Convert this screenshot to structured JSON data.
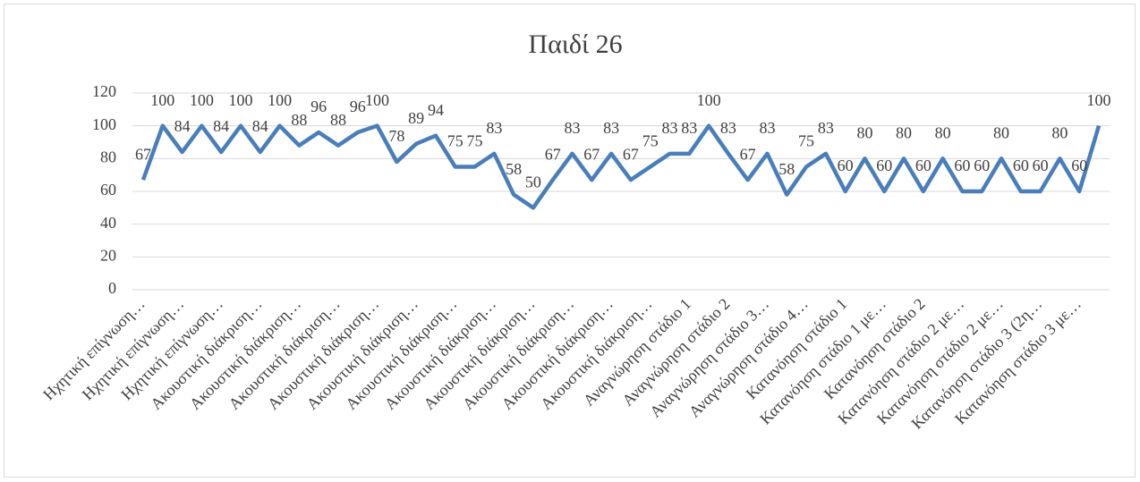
{
  "chart_data": {
    "type": "line",
    "title": "Παιδί 26",
    "categories": [
      "Ηχητική επίγνωση…",
      null,
      "Ηχητική επίγνωση…",
      null,
      "Ηχητική επίγνωση…",
      null,
      "Ακουστική διάκριση…",
      null,
      "Ακουστική διάκριση…",
      null,
      "Ακουστική διάκριση…",
      null,
      "Ακουστική διάκριση…",
      null,
      "Ακουστική διάκριση…",
      null,
      "Ακουστική διάκριση…",
      null,
      "Ακουστική διάκριση…",
      null,
      "Ακουστική διάκριση…",
      null,
      "Ακουστική διάκριση…",
      null,
      "Ακουστική διάκριση…",
      null,
      "Ακουστική διάκριση…",
      null,
      "Αναγνώρηση στάδιο 1",
      null,
      "Αναγνώρηση στάδιο 2",
      null,
      "Αναγνώρηση στάδιο 3…",
      null,
      "Αναγνώρηση στάδιο 4…",
      null,
      "Κατανόηση στάδιο 1",
      null,
      "Κατανόηση στάδιο 1 με…",
      null,
      "Κατανόηση στάδιο 2",
      null,
      "Κατανόηση στάδιο 2 με…",
      null,
      "Κατανόηση στάδιο 2 με…",
      null,
      "Κατανόηση στάδιο 3 (2η…",
      null,
      "Κατανόηση στάδιο 3 με…",
      null
    ],
    "values": [
      67,
      100,
      84,
      100,
      84,
      100,
      84,
      100,
      88,
      96,
      88,
      96,
      100,
      78,
      89,
      94,
      75,
      75,
      83,
      58,
      50,
      67,
      83,
      67,
      83,
      67,
      75,
      83,
      83,
      100,
      83,
      67,
      83,
      58,
      75,
      83,
      60,
      80,
      60,
      80,
      60,
      80,
      60,
      60,
      80,
      60,
      60,
      80,
      60,
      100
    ],
    "color": "#4a7ebb",
    "ylim": [
      0,
      120
    ],
    "yticks": [
      0,
      20,
      40,
      60,
      80,
      100,
      120
    ],
    "grid": true
  }
}
